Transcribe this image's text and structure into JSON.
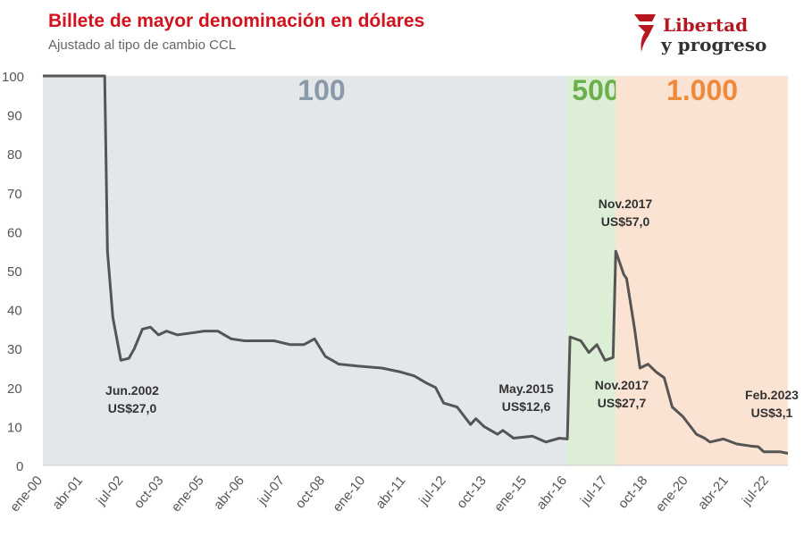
{
  "header": {
    "title": "Billete de mayor denominación en dólares",
    "subtitle": "Ajustado al tipo de cambio CCL",
    "logo_line1": "Libertad",
    "logo_line2": "y progreso"
  },
  "chart_data": {
    "type": "line",
    "title": "Billete de mayor denominación en dólares",
    "subtitle": "Ajustado al tipo de cambio CCL",
    "xlabel": "",
    "ylabel": "",
    "ylim": [
      0,
      100
    ],
    "yticks": [
      0,
      10,
      20,
      30,
      40,
      50,
      60,
      70,
      80,
      90,
      100
    ],
    "xticks": [
      {
        "label": "ene-00",
        "date": "2000-01"
      },
      {
        "label": "abr-01",
        "date": "2001-04"
      },
      {
        "label": "jul-02",
        "date": "2002-07"
      },
      {
        "label": "oct-03",
        "date": "2003-10"
      },
      {
        "label": "ene-05",
        "date": "2005-01"
      },
      {
        "label": "abr-06",
        "date": "2006-04"
      },
      {
        "label": "jul-07",
        "date": "2007-07"
      },
      {
        "label": "oct-08",
        "date": "2008-10"
      },
      {
        "label": "ene-10",
        "date": "2010-01"
      },
      {
        "label": "abr-11",
        "date": "2011-04"
      },
      {
        "label": "jul-12",
        "date": "2012-07"
      },
      {
        "label": "oct-13",
        "date": "2013-10"
      },
      {
        "label": "ene-15",
        "date": "2015-01"
      },
      {
        "label": "abr-16",
        "date": "2016-04"
      },
      {
        "label": "jul-17",
        "date": "2017-07"
      },
      {
        "label": "oct-18",
        "date": "2018-10"
      },
      {
        "label": "ene-20",
        "date": "2020-01"
      },
      {
        "label": "abr-21",
        "date": "2021-04"
      },
      {
        "label": "jul-22",
        "date": "2022-07"
      }
    ],
    "xrange": [
      "2000-01",
      "2023-02"
    ],
    "regions": [
      {
        "label": "100",
        "from": "2000-01",
        "to": "2016-04",
        "color": "#e4e7ea",
        "text_color": "#8a9aab"
      },
      {
        "label": "500",
        "from": "2016-04",
        "to": "2017-10",
        "color": "#dcefd6",
        "text_color": "#6ab04c"
      },
      {
        "label": "1.000",
        "from": "2017-10",
        "to": "2023-02",
        "color": "#fbe3d3",
        "text_color": "#ee8a3c"
      }
    ],
    "series": [
      {
        "name": "Billete de mayor denominación (US$)",
        "color": "#555555",
        "points": [
          [
            "2000-01",
            100
          ],
          [
            "2001-12",
            100
          ],
          [
            "2002-01",
            55
          ],
          [
            "2002-03",
            38
          ],
          [
            "2002-06",
            27
          ],
          [
            "2002-09",
            27.5
          ],
          [
            "2002-11",
            30
          ],
          [
            "2003-02",
            35
          ],
          [
            "2003-05",
            35.5
          ],
          [
            "2003-08",
            33.5
          ],
          [
            "2003-11",
            34.5
          ],
          [
            "2004-03",
            33.5
          ],
          [
            "2004-08",
            34
          ],
          [
            "2005-01",
            34.5
          ],
          [
            "2005-06",
            34.5
          ],
          [
            "2005-11",
            32.5
          ],
          [
            "2006-04",
            32
          ],
          [
            "2006-10",
            32
          ],
          [
            "2007-03",
            32
          ],
          [
            "2007-09",
            31
          ],
          [
            "2008-02",
            31
          ],
          [
            "2008-06",
            32.5
          ],
          [
            "2008-10",
            28
          ],
          [
            "2009-03",
            26
          ],
          [
            "2009-10",
            25.5
          ],
          [
            "2010-07",
            25
          ],
          [
            "2011-02",
            24
          ],
          [
            "2011-07",
            23
          ],
          [
            "2011-12",
            21
          ],
          [
            "2012-03",
            20
          ],
          [
            "2012-06",
            16
          ],
          [
            "2012-11",
            15
          ],
          [
            "2013-04",
            10.5
          ],
          [
            "2013-06",
            12
          ],
          [
            "2013-09",
            10
          ],
          [
            "2014-02",
            8
          ],
          [
            "2014-04",
            9
          ],
          [
            "2014-08",
            7
          ],
          [
            "2015-03",
            7.5
          ],
          [
            "2015-08",
            6
          ],
          [
            "2016-01",
            7
          ],
          [
            "2016-04",
            6.8
          ],
          [
            "2016-05",
            33
          ],
          [
            "2016-09",
            32
          ],
          [
            "2016-12",
            29
          ],
          [
            "2017-03",
            31
          ],
          [
            "2017-06",
            27
          ],
          [
            "2017-09",
            27.7
          ],
          [
            "2017-10",
            55
          ],
          [
            "2018-01",
            49
          ],
          [
            "2018-02",
            48
          ],
          [
            "2018-05",
            35
          ],
          [
            "2018-07",
            25
          ],
          [
            "2018-10",
            26
          ],
          [
            "2019-01",
            24
          ],
          [
            "2019-04",
            22.5
          ],
          [
            "2019-07",
            15
          ],
          [
            "2019-11",
            12.5
          ],
          [
            "2020-04",
            8
          ],
          [
            "2020-07",
            7
          ],
          [
            "2020-09",
            6
          ],
          [
            "2021-02",
            6.8
          ],
          [
            "2021-07",
            5.5
          ],
          [
            "2021-12",
            5
          ],
          [
            "2022-03",
            4.8
          ],
          [
            "2022-05",
            3.5
          ],
          [
            "2022-11",
            3.5
          ],
          [
            "2023-02",
            3.1
          ]
        ]
      }
    ],
    "annotations": [
      {
        "line1": "Jun.2002",
        "line2": "US$27,0",
        "date": "2002-06",
        "value": 27.0
      },
      {
        "line1": "May.2015",
        "line2": "US$12,6",
        "date": "2015-05",
        "value": 12.6
      },
      {
        "line1": "Nov.2017",
        "line2": "US$57,0",
        "date": "2017-11",
        "value": 57.0
      },
      {
        "line1": "Nov.2017",
        "line2": "US$27,7",
        "date": "2017-11",
        "value": 27.7
      },
      {
        "line1": "Feb.2023",
        "line2": "US$3,1",
        "date": "2023-02",
        "value": 3.1
      }
    ],
    "grid": false,
    "legend": "none"
  }
}
